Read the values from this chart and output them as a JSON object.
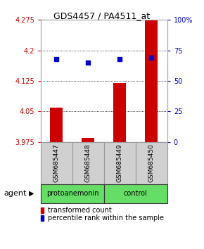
{
  "title": "GDS4457 / PA4511_at",
  "samples": [
    "GSM685447",
    "GSM685448",
    "GSM685449",
    "GSM685450"
  ],
  "bar_values": [
    4.06,
    3.985,
    4.12,
    4.275
  ],
  "percentile_values": [
    68,
    65,
    68,
    69
  ],
  "y_min": 3.975,
  "y_max": 4.275,
  "y_ticks": [
    3.975,
    4.05,
    4.125,
    4.2,
    4.275
  ],
  "y_right_ticks": [
    0,
    25,
    50,
    75,
    100
  ],
  "bar_color": "#cc0000",
  "dot_color": "#0000cc",
  "groups": [
    {
      "label": "protoanemonin",
      "start": 0,
      "end": 2,
      "color": "#66dd66"
    },
    {
      "label": "control",
      "start": 2,
      "end": 4,
      "color": "#66dd66"
    }
  ],
  "agent_label": "agent",
  "legend_bar_label": "transformed count",
  "legend_dot_label": "percentile rank within the sample",
  "left_axis_color": "#cc0000",
  "right_axis_color": "#0000cc",
  "sample_box_color": "#d0d0d0",
  "sample_box_edge": "#999999",
  "percentile_scale_min": 0,
  "percentile_scale_max": 100,
  "bg_color": "#ffffff"
}
